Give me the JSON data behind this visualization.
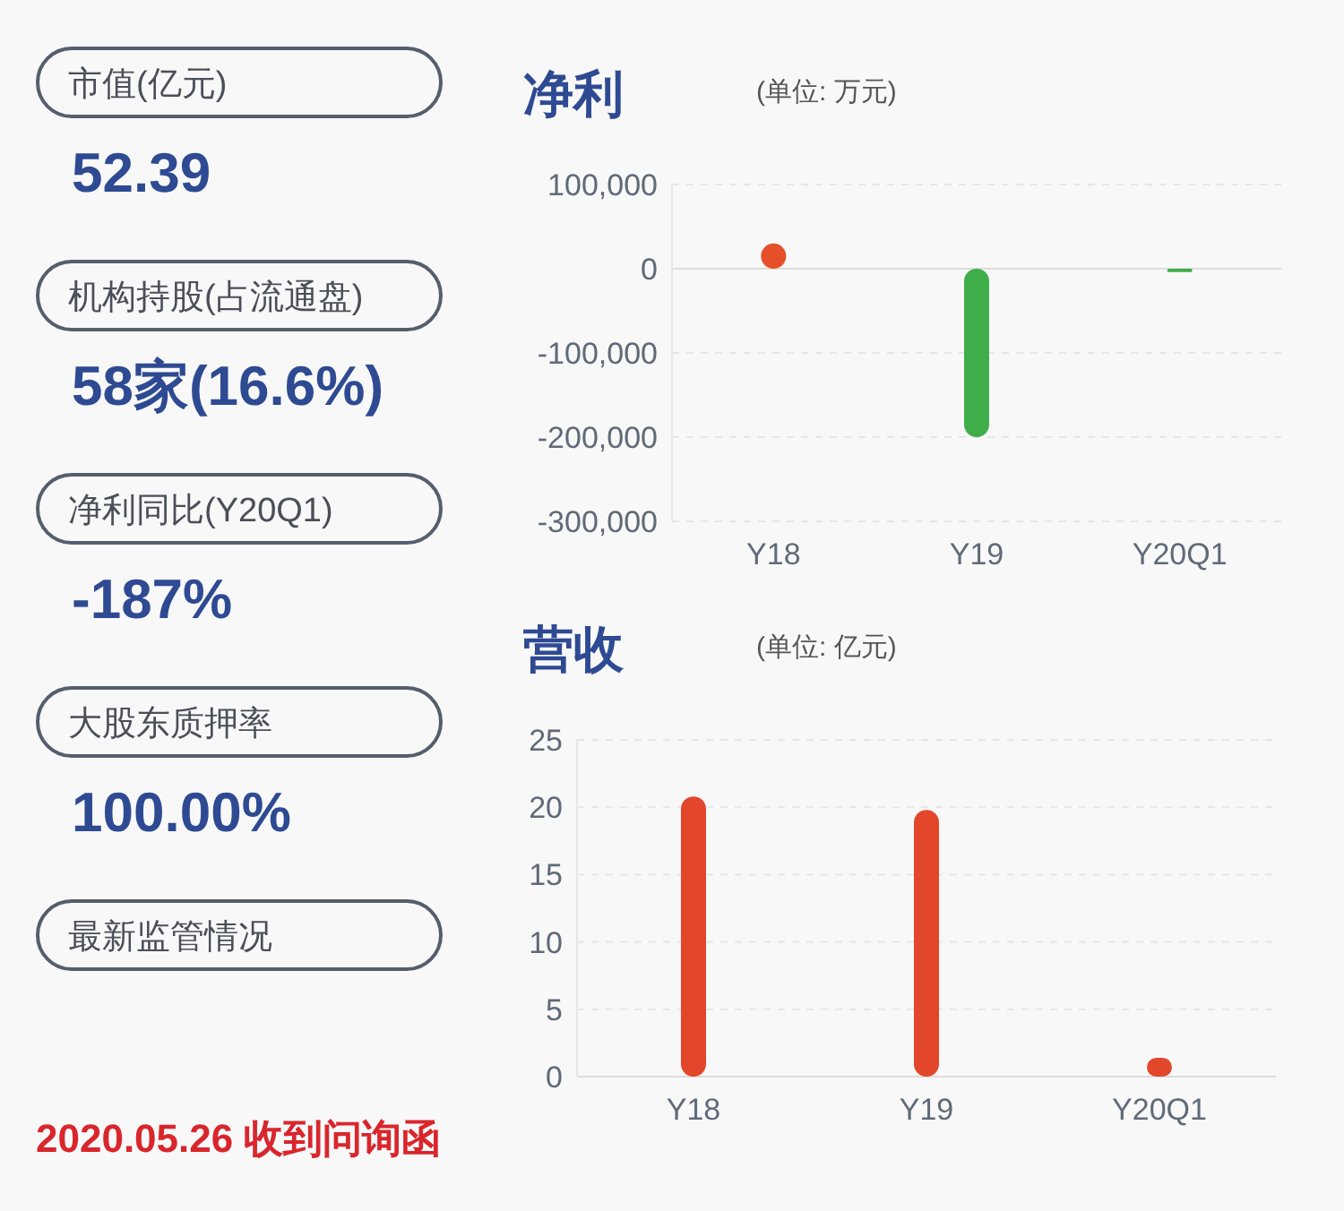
{
  "chart_data": [
    {
      "type": "other",
      "annotations": [
        "市值(亿元)",
        "52.39",
        "机构持股(占流通盘)",
        "58家(16.6%)",
        "净利同比(Y20Q1)",
        "-187%",
        "大股东质押率",
        "100.00%",
        "最新监管情况",
        "2020.05.26 收到问询函"
      ]
    },
    {
      "type": "bar",
      "title": "净利",
      "subtitle": "(单位: 万元)",
      "categories": [
        "Y18",
        "Y19",
        "Y20Q1"
      ],
      "values": [
        30000,
        -200000,
        -4000
      ],
      "colors": [
        "#e5502a",
        "#3fae4a",
        "#3fae4a"
      ],
      "ylim": [
        -300000,
        100000
      ],
      "yticks": [
        {
          "value": -300000,
          "label": "-300,000"
        },
        {
          "value": -200000,
          "label": "-200,000"
        },
        {
          "value": -100000,
          "label": "-100,000"
        },
        0,
        {
          "value": 100000,
          "label": "100,000"
        }
      ],
      "grid": "y"
    },
    {
      "type": "bar",
      "title": "营收",
      "subtitle": "(单位: 亿元)",
      "categories": [
        "Y18",
        "Y19",
        "Y20Q1"
      ],
      "values": [
        20.8,
        19.8,
        1.4
      ],
      "colors": [
        "#e2472c",
        "#e2472c",
        "#e2472c"
      ],
      "ylim": [
        0,
        25
      ],
      "yticks": [
        0,
        5,
        10,
        15,
        20,
        25
      ],
      "grid": "y"
    }
  ]
}
